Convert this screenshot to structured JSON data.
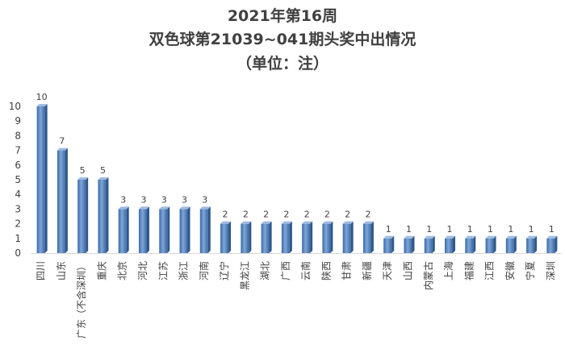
{
  "chart_data": {
    "type": "bar",
    "title_line1": "2021年第16周",
    "title_line2": "双色球第21039~041期头奖中出情况",
    "title_line3": "（单位：注）",
    "categories": [
      "四川",
      "山东",
      "广东（不含深圳）",
      "重庆",
      "北京",
      "河北",
      "江苏",
      "浙江",
      "河南",
      "辽宁",
      "黑龙江",
      "湖北",
      "广西",
      "云南",
      "陕西",
      "甘肃",
      "新疆",
      "天津",
      "山西",
      "内蒙古",
      "上海",
      "福建",
      "江西",
      "安徽",
      "宁夏",
      "深圳"
    ],
    "values": [
      10,
      7,
      5,
      5,
      3,
      3,
      3,
      3,
      3,
      2,
      2,
      2,
      2,
      2,
      2,
      2,
      2,
      1,
      1,
      1,
      1,
      1,
      1,
      1,
      1,
      1
    ],
    "ylim": [
      0,
      10
    ],
    "yticks": [
      0,
      1,
      2,
      3,
      4,
      5,
      6,
      7,
      8,
      9,
      10
    ],
    "grid": false,
    "bar_color": "#4f81bd"
  }
}
